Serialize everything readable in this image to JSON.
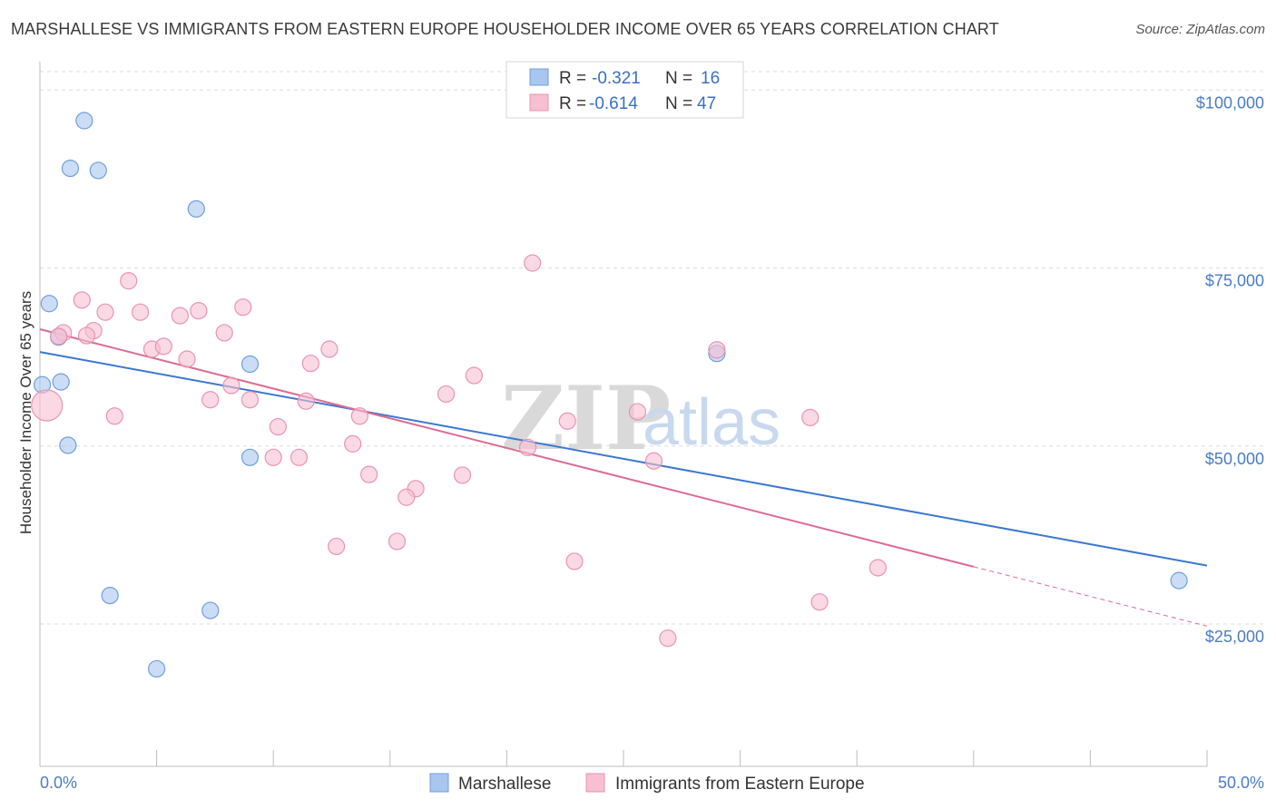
{
  "title": "MARSHALLESE VS IMMIGRANTS FROM EASTERN EUROPE HOUSEHOLDER INCOME OVER 65 YEARS CORRELATION CHART",
  "source": "Source: ZipAtlas.com",
  "watermark": {
    "zip": "ZIP",
    "atlas": "atlas"
  },
  "chart_data": {
    "type": "scatter",
    "ylabel": "Householder Income Over 65 years",
    "xlabel": "",
    "xlim": [
      0,
      50
    ],
    "ylim": [
      5000,
      105000
    ],
    "x_tick_labels": {
      "left": "0.0%",
      "right": "50.0%"
    },
    "y_ticks": [
      {
        "value": 25000,
        "label": "$25,000"
      },
      {
        "value": 50000,
        "label": "$50,000"
      },
      {
        "value": 75000,
        "label": "$75,000"
      },
      {
        "value": 100000,
        "label": "$100,000"
      }
    ],
    "legend": [
      {
        "r_label": "R =",
        "r_value": "-0.321",
        "n_label": "N =",
        "n_value": "16"
      },
      {
        "r_label": "R =",
        "r_value": "-0.614",
        "n_label": "N =",
        "n_value": "47"
      }
    ],
    "series": [
      {
        "name": "Marshallese",
        "color": "#a8c6ee",
        "stroke": "#6f9fdc",
        "line_color": "#3b78d0",
        "trend": {
          "x0": 0,
          "y0": 63200,
          "x1": 50,
          "y1": 33200,
          "solid_until": 50
        },
        "points": [
          [
            1.9,
            95700
          ],
          [
            1.3,
            89000
          ],
          [
            2.5,
            88700
          ],
          [
            6.7,
            83300
          ],
          [
            0.4,
            70000
          ],
          [
            0.8,
            65300
          ],
          [
            0.9,
            59000
          ],
          [
            0.1,
            58600
          ],
          [
            9.0,
            61500
          ],
          [
            29.0,
            63000
          ],
          [
            1.2,
            50100
          ],
          [
            9.0,
            48400
          ],
          [
            3.0,
            29000
          ],
          [
            7.3,
            26900
          ],
          [
            5.0,
            18700
          ],
          [
            48.8,
            31100
          ]
        ]
      },
      {
        "name": "Immigrants from Eastern Europe",
        "color": "#f6bfd2",
        "stroke": "#ea93b1",
        "line_color": "#dd6a95",
        "trend": {
          "x0": 0,
          "y0": 66400,
          "x1": 50,
          "y1": 24700,
          "solid_until": 40
        },
        "points": [
          [
            3.8,
            73200
          ],
          [
            1.8,
            70500
          ],
          [
            8.7,
            69500
          ],
          [
            2.8,
            68800
          ],
          [
            4.3,
            68800
          ],
          [
            6.0,
            68300
          ],
          [
            6.8,
            69000
          ],
          [
            1.0,
            65900
          ],
          [
            2.3,
            66200
          ],
          [
            7.9,
            65900
          ],
          [
            0.8,
            65400
          ],
          [
            4.8,
            63600
          ],
          [
            5.3,
            64000
          ],
          [
            12.4,
            63600
          ],
          [
            6.3,
            62200
          ],
          [
            11.6,
            61600
          ],
          [
            29.0,
            63500
          ],
          [
            18.6,
            59900
          ],
          [
            8.2,
            58500
          ],
          [
            17.4,
            57300
          ],
          [
            7.3,
            56500
          ],
          [
            9.0,
            56500
          ],
          [
            11.4,
            56300
          ],
          [
            0.3,
            55700
          ],
          [
            3.2,
            54200
          ],
          [
            13.7,
            54200
          ],
          [
            25.6,
            54800
          ],
          [
            22.6,
            53500
          ],
          [
            33.0,
            54000
          ],
          [
            10.2,
            52700
          ],
          [
            13.4,
            50300
          ],
          [
            20.9,
            49800
          ],
          [
            10.0,
            48400
          ],
          [
            11.1,
            48400
          ],
          [
            26.3,
            47900
          ],
          [
            14.1,
            46000
          ],
          [
            18.1,
            45900
          ],
          [
            16.1,
            44000
          ],
          [
            15.7,
            42800
          ],
          [
            21.1,
            75700
          ],
          [
            12.7,
            35900
          ],
          [
            15.3,
            36600
          ],
          [
            22.9,
            33800
          ],
          [
            35.9,
            32900
          ],
          [
            33.4,
            28100
          ],
          [
            26.9,
            23000
          ],
          [
            2.0,
            65500
          ]
        ]
      }
    ]
  },
  "bottom_legend": [
    "Marshallese",
    "Immigrants from Eastern Europe"
  ]
}
